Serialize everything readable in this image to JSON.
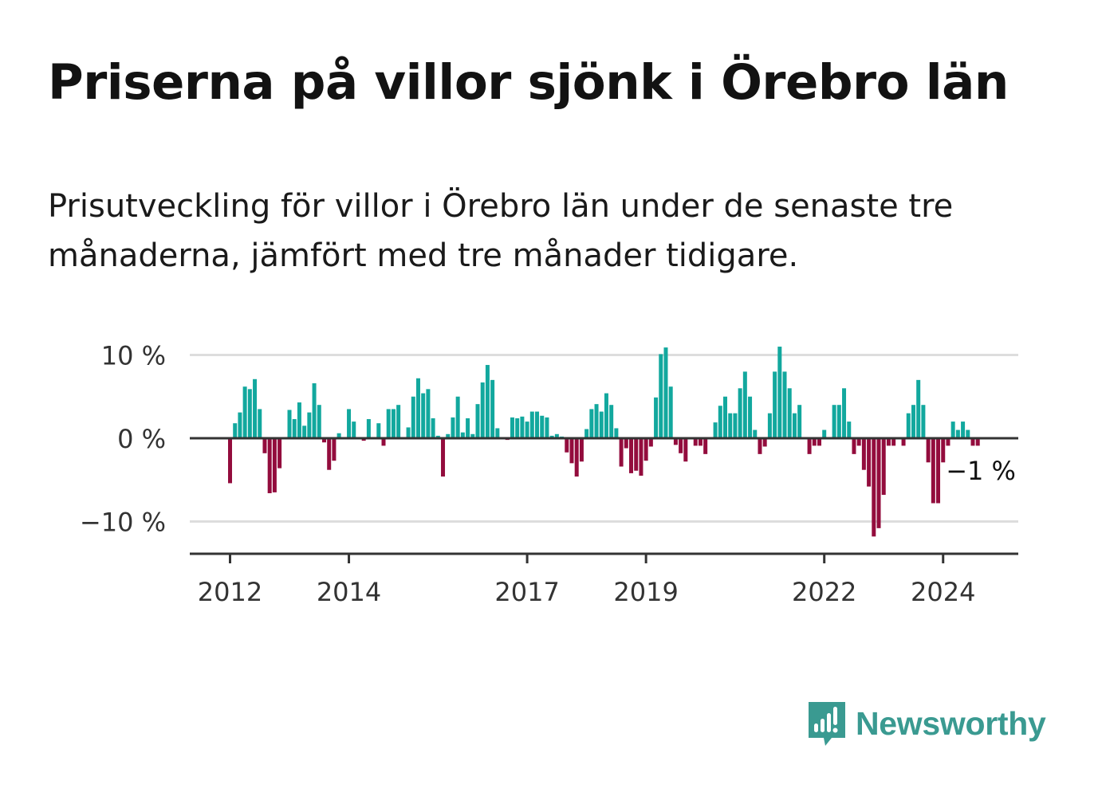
{
  "title": "Priserna på villor sjönk i Örebro län",
  "subtitle": "Prisutveckling för villor i Örebro län under de senaste tre månaderna, jämfört med tre månader tidigare.",
  "brand": {
    "name": "Newsworthy",
    "icon": "newsworthy-chart-bubble-icon",
    "color": "#3a9a91"
  },
  "colors": {
    "positive": "#12a89e",
    "negative": "#930c3d",
    "grid": "#dddddd",
    "axis": "#333333"
  },
  "chart_data": {
    "type": "bar",
    "start": "2012-01",
    "x_tick_labels": [
      "2012",
      "2014",
      "2017",
      "2019",
      "2022",
      "2024"
    ],
    "y_ticks": [
      10,
      0,
      -10
    ],
    "y_tick_labels": [
      "10 %",
      "0 %",
      "−10 %"
    ],
    "ylim": [
      -13.5,
      10.5
    ],
    "last_value_label": "−1 %",
    "grid": true,
    "values": [
      -5.4,
      1.8,
      3.1,
      6.2,
      5.9,
      7.1,
      3.5,
      -1.8,
      -6.6,
      -6.5,
      -3.6,
      0,
      3.4,
      2.3,
      4.3,
      1.5,
      3.1,
      6.6,
      4.0,
      -0.5,
      -3.8,
      -2.7,
      0.6,
      0,
      3.5,
      2.0,
      0,
      -0.3,
      2.3,
      0,
      1.8,
      -0.9,
      3.5,
      3.5,
      4.0,
      0,
      1.3,
      5.0,
      7.2,
      5.4,
      5.9,
      2.4,
      0.3,
      -4.6,
      0.5,
      2.5,
      5.0,
      0.7,
      2.4,
      0.5,
      4.1,
      6.7,
      8.8,
      7.0,
      1.2,
      0,
      -0.2,
      2.5,
      2.4,
      2.6,
      2.0,
      3.2,
      3.2,
      2.7,
      2.5,
      0.3,
      0.5,
      0.2,
      -1.7,
      -3.0,
      -4.6,
      -2.8,
      1.1,
      3.5,
      4.1,
      3.2,
      5.4,
      4.0,
      1.2,
      -3.4,
      -1.2,
      -4.2,
      -3.9,
      -4.5,
      -2.7,
      -1.0,
      4.9,
      10.1,
      10.9,
      6.2,
      -0.8,
      -1.8,
      -2.8,
      0,
      -0.9,
      -0.9,
      -1.9,
      0,
      1.9,
      3.9,
      5.0,
      3.0,
      3.0,
      6.0,
      8.0,
      5.0,
      1.0,
      -1.9,
      -1.0,
      3.0,
      8.0,
      11.0,
      8.0,
      6.0,
      3.0,
      4.0,
      0,
      -1.9,
      -0.9,
      -0.9,
      1.0,
      0,
      4.0,
      4.0,
      6.0,
      2.0,
      -1.9,
      -0.9,
      -3.8,
      -5.8,
      -11.8,
      -10.8,
      -6.8,
      -0.9,
      -0.9,
      0,
      -0.9,
      3.0,
      4.0,
      7.0,
      4.0,
      -2.9,
      -7.8,
      -7.8,
      -2.9,
      -0.9,
      2.0,
      1.0,
      2.0,
      1.0,
      -0.9,
      -0.9
    ]
  }
}
